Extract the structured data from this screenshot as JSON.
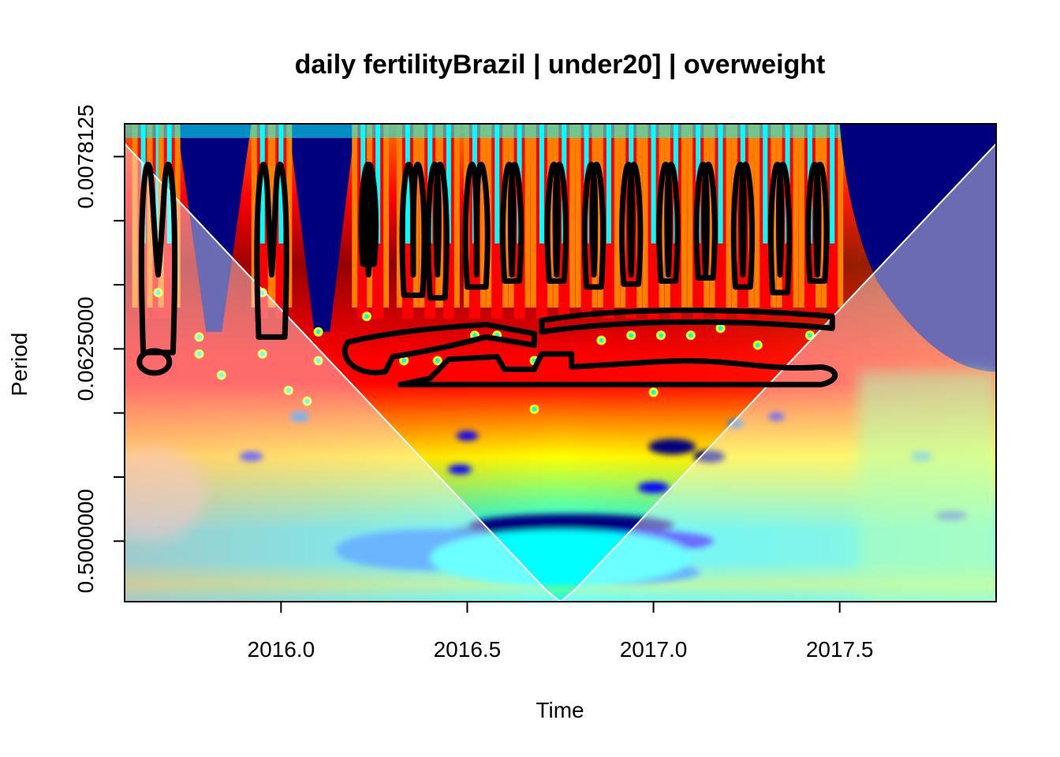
{
  "chart_data": {
    "type": "heatmap",
    "title": "daily fertilityBrazil | under20] | overweight",
    "xlabel": "Time",
    "ylabel": "Period",
    "x_ticks": [
      2016.0,
      2016.5,
      2017.0,
      2017.5
    ],
    "x_tick_labels": [
      "2016.0",
      "2016.5",
      "2017.0",
      "2017.5"
    ],
    "xlim": [
      2015.58,
      2017.92
    ],
    "y_scale": "log2",
    "y_ticks": [
      0.0078125,
      0.015625,
      0.03125,
      0.0625,
      0.125,
      0.25,
      0.5
    ],
    "y_tick_labels": [
      "0.0078125",
      "",
      "",
      "0.0625000",
      "",
      "",
      "0.5000000"
    ],
    "ylim": [
      0.00548,
      0.962
    ],
    "colormap": [
      "#00007f",
      "#0000ff",
      "#007fff",
      "#00ffff",
      "#7fff7f",
      "#ffff00",
      "#ff7f00",
      "#ff0000",
      "#7f0000"
    ],
    "cone_of_influence": true,
    "significance_contours": true
  }
}
